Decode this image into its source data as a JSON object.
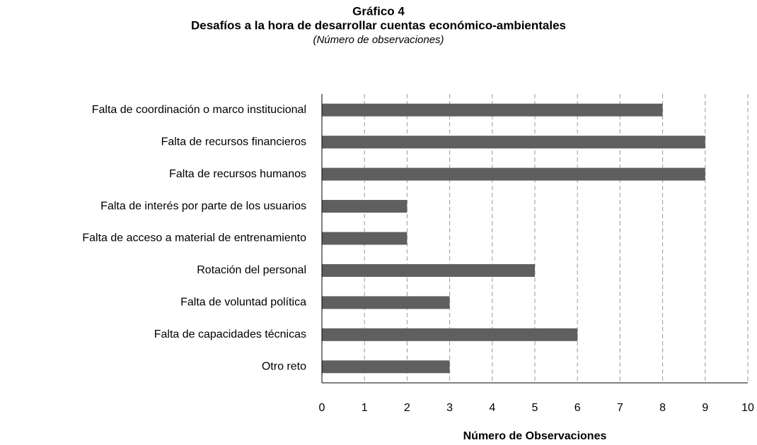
{
  "chart_data": {
    "type": "bar",
    "orientation": "horizontal",
    "title": "Gráfico 4",
    "subtitle": "Desafíos a la hora de desarrollar cuentas económico-ambientales",
    "note": "(Número de observaciones)",
    "x_label": "Número de Observaciones",
    "categories": [
      "Falta de coordinación o marco institucional",
      "Falta de recursos financieros",
      "Falta de recursos humanos",
      "Falta de interés por parte de los usuarios",
      "Falta de acceso a material de entrenamiento",
      "Rotación del personal",
      "Falta de voluntad política",
      "Falta de capacidades técnicas",
      "Otro reto"
    ],
    "values": [
      8,
      9,
      9,
      2,
      2,
      5,
      3,
      6,
      3
    ],
    "color": "#5f5f5f",
    "xlim": [
      0,
      10
    ],
    "xticks": [
      0,
      1,
      2,
      3,
      4,
      5,
      6,
      7,
      8,
      9,
      10
    ],
    "grid": true
  }
}
